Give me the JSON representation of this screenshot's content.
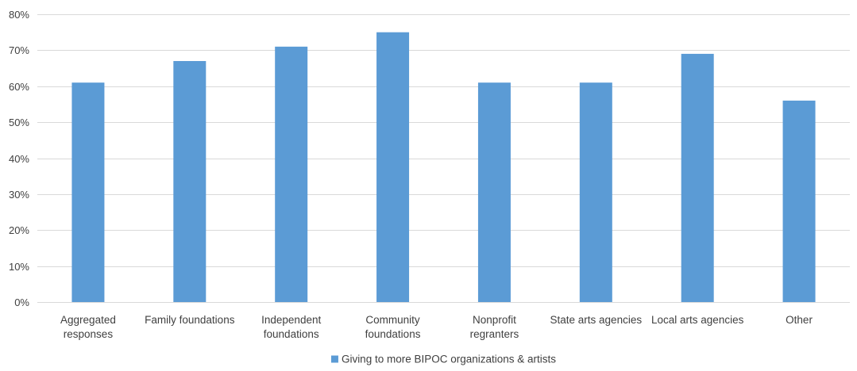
{
  "chart_data": {
    "type": "bar",
    "title": "",
    "xlabel": "",
    "ylabel": "",
    "categories": [
      [
        "Aggregated",
        "responses"
      ],
      [
        "Family foundations"
      ],
      [
        "Independent",
        "foundations"
      ],
      [
        "Community",
        "foundations"
      ],
      [
        "Nonprofit",
        "regranters"
      ],
      [
        "State arts agencies"
      ],
      [
        "Local arts agencies"
      ],
      [
        "Other"
      ]
    ],
    "series": [
      {
        "name": "Giving to more BIPOC organizations & artists",
        "values": [
          61,
          67,
          71,
          75,
          61,
          61,
          69,
          56
        ],
        "color": "#5b9bd5"
      }
    ],
    "ylim": [
      0,
      80
    ],
    "yticks": [
      0,
      10,
      20,
      30,
      40,
      50,
      60,
      70,
      80
    ],
    "ytick_labels": [
      "0%",
      "10%",
      "20%",
      "30%",
      "40%",
      "50%",
      "60%",
      "70%",
      "80%"
    ],
    "grid": true,
    "gridline_color": "#d9d9d9",
    "legend_position": "bottom"
  }
}
